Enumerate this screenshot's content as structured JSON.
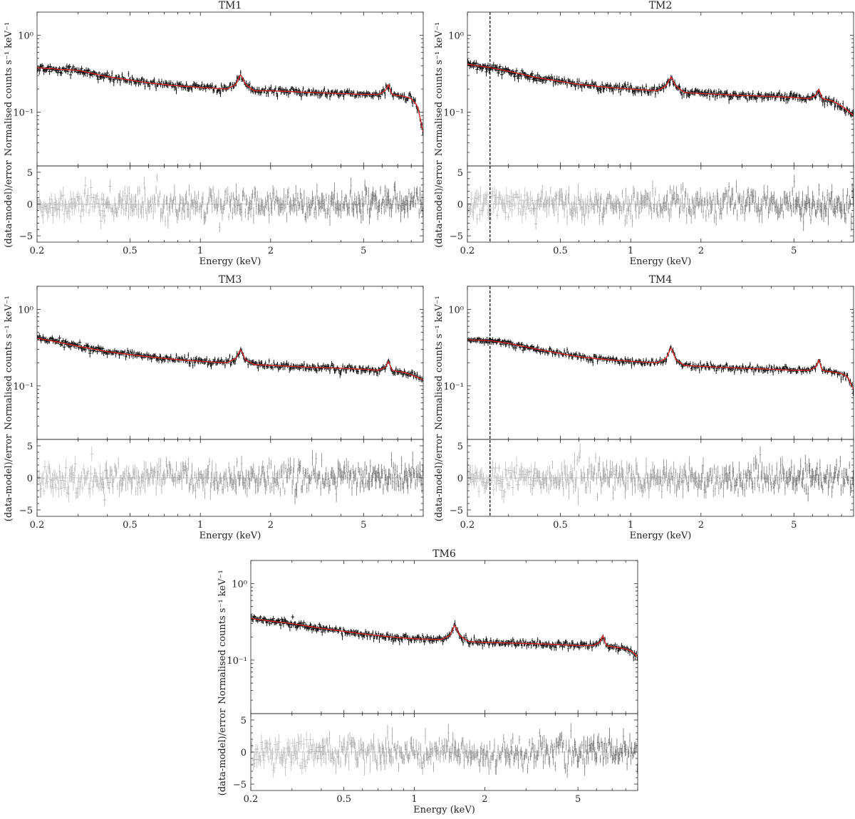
{
  "figure": {
    "colors": {
      "data": "#000000",
      "model": "#d62728",
      "residual_low": "#bdbdbd",
      "residual_high": "#6e6e6e",
      "marker_line": "#000000"
    }
  },
  "chart_data": [
    {
      "type": "scatter",
      "title": "TM1",
      "xlabel": "Energy (keV)",
      "ylabel_top": "Normalised counts s⁻¹ keV⁻¹",
      "ylabel_bottom": "(data-model)/error",
      "xscale": "log",
      "yscale_top": "log",
      "xlim": [
        0.2,
        9.0
      ],
      "ylim_top": [
        0.02,
        2.0
      ],
      "ylim_bottom": [
        -6,
        6
      ],
      "xticks": [
        0.2,
        0.5,
        1,
        2,
        5
      ],
      "xtick_labels": [
        "0.2",
        "0.5",
        "1",
        "2",
        "5"
      ],
      "yticks_top": [
        1.0,
        0.1
      ],
      "ytick_labels_top": [
        "10⁰",
        "10⁻¹"
      ],
      "yticks_bottom": [
        5,
        0,
        -5
      ],
      "ytick_labels_bottom": [
        "5",
        "0",
        "−5"
      ],
      "vline": null,
      "model": {
        "x": [
          0.2,
          0.25,
          0.3,
          0.4,
          0.6,
          0.8,
          1.0,
          1.3,
          1.42,
          1.49,
          1.56,
          1.7,
          2.0,
          3.0,
          4.0,
          5.0,
          5.8,
          6.2,
          6.4,
          6.6,
          7.0,
          7.5,
          8.0,
          8.5,
          9.0
        ],
        "y": [
          0.38,
          0.36,
          0.35,
          0.29,
          0.24,
          0.22,
          0.21,
          0.2,
          0.23,
          0.31,
          0.23,
          0.19,
          0.19,
          0.18,
          0.175,
          0.17,
          0.17,
          0.19,
          0.23,
          0.17,
          0.165,
          0.16,
          0.15,
          0.12,
          0.055
        ]
      },
      "noise": 0.1
    },
    {
      "type": "scatter",
      "title": "TM2",
      "xlabel": "Energy (keV)",
      "ylabel_top": "Normalised counts s⁻¹ keV⁻¹",
      "ylabel_bottom": "(data-model)/error",
      "xscale": "log",
      "yscale_top": "log",
      "xlim": [
        0.2,
        9.0
      ],
      "ylim_top": [
        0.02,
        2.0
      ],
      "ylim_bottom": [
        -6,
        6
      ],
      "xticks": [
        0.2,
        0.5,
        1,
        2,
        5
      ],
      "xtick_labels": [
        "0.2",
        "0.5",
        "1",
        "2",
        "5"
      ],
      "yticks_top": [
        1.0,
        0.1
      ],
      "ytick_labels_top": [
        "10⁰",
        "10⁻¹"
      ],
      "yticks_bottom": [
        5,
        0,
        -5
      ],
      "ytick_labels_bottom": [
        "5",
        "0",
        "−5"
      ],
      "vline": 0.25,
      "model": {
        "x": [
          0.2,
          0.25,
          0.3,
          0.4,
          0.6,
          0.8,
          1.0,
          1.3,
          1.42,
          1.49,
          1.56,
          1.7,
          2.0,
          3.0,
          4.0,
          5.0,
          5.8,
          6.2,
          6.4,
          6.6,
          7.0,
          7.5,
          8.0,
          8.5,
          9.0
        ],
        "y": [
          0.42,
          0.38,
          0.34,
          0.28,
          0.23,
          0.21,
          0.2,
          0.19,
          0.22,
          0.29,
          0.22,
          0.18,
          0.175,
          0.165,
          0.16,
          0.155,
          0.15,
          0.165,
          0.2,
          0.15,
          0.145,
          0.135,
          0.12,
          0.105,
          0.09
        ]
      },
      "noise": 0.11
    },
    {
      "type": "scatter",
      "title": "TM3",
      "xlabel": "Energy (keV)",
      "ylabel_top": "Normalised counts s⁻¹ keV⁻¹",
      "ylabel_bottom": "(data-model)/error",
      "xscale": "log",
      "yscale_top": "log",
      "xlim": [
        0.2,
        9.0
      ],
      "ylim_top": [
        0.02,
        2.0
      ],
      "ylim_bottom": [
        -6,
        6
      ],
      "xticks": [
        0.2,
        0.5,
        1,
        2,
        5
      ],
      "xtick_labels": [
        "0.2",
        "0.5",
        "1",
        "2",
        "5"
      ],
      "yticks_top": [
        1.0,
        0.1
      ],
      "ytick_labels_top": [
        "10⁰",
        "10⁻¹"
      ],
      "yticks_bottom": [
        5,
        0,
        -5
      ],
      "ytick_labels_bottom": [
        "5",
        "0",
        "−5"
      ],
      "vline": null,
      "model": {
        "x": [
          0.2,
          0.25,
          0.3,
          0.4,
          0.6,
          0.8,
          1.0,
          1.3,
          1.42,
          1.49,
          1.56,
          1.7,
          2.0,
          3.0,
          4.0,
          5.0,
          5.8,
          6.2,
          6.4,
          6.6,
          7.0,
          7.5,
          8.0,
          8.5,
          9.0
        ],
        "y": [
          0.42,
          0.37,
          0.33,
          0.28,
          0.24,
          0.22,
          0.21,
          0.2,
          0.23,
          0.3,
          0.22,
          0.19,
          0.185,
          0.175,
          0.17,
          0.165,
          0.16,
          0.175,
          0.21,
          0.16,
          0.155,
          0.15,
          0.14,
          0.13,
          0.12
        ]
      },
      "noise": 0.1
    },
    {
      "type": "scatter",
      "title": "TM4",
      "xlabel": "Energy (keV)",
      "ylabel_top": "Normalised counts s⁻¹ keV⁻¹",
      "ylabel_bottom": "(data-model)/error",
      "xscale": "log",
      "yscale_top": "log",
      "xlim": [
        0.2,
        9.0
      ],
      "ylim_top": [
        0.02,
        2.0
      ],
      "ylim_bottom": [
        -6,
        6
      ],
      "xticks": [
        0.2,
        0.5,
        1,
        2,
        5
      ],
      "xtick_labels": [
        "0.2",
        "0.5",
        "1",
        "2",
        "5"
      ],
      "yticks_top": [
        1.0,
        0.1
      ],
      "ytick_labels_top": [
        "10⁰",
        "10⁻¹"
      ],
      "yticks_bottom": [
        5,
        0,
        -5
      ],
      "ytick_labels_bottom": [
        "5",
        "0",
        "−5"
      ],
      "vline": 0.25,
      "model": {
        "x": [
          0.2,
          0.25,
          0.3,
          0.4,
          0.6,
          0.8,
          1.0,
          1.3,
          1.42,
          1.49,
          1.56,
          1.7,
          2.0,
          3.0,
          4.0,
          5.0,
          5.8,
          6.2,
          6.4,
          6.6,
          7.0,
          7.5,
          8.0,
          8.5,
          9.0
        ],
        "y": [
          0.4,
          0.39,
          0.36,
          0.3,
          0.24,
          0.22,
          0.21,
          0.2,
          0.23,
          0.32,
          0.22,
          0.185,
          0.18,
          0.17,
          0.165,
          0.16,
          0.16,
          0.175,
          0.22,
          0.16,
          0.155,
          0.15,
          0.145,
          0.13,
          0.09
        ]
      },
      "noise": 0.09
    },
    {
      "type": "scatter",
      "title": "TM6",
      "xlabel": "Energy (keV)",
      "ylabel_top": "Normalised counts s⁻¹ keV⁻¹",
      "ylabel_bottom": "(data-model)/error",
      "xscale": "log",
      "yscale_top": "log",
      "xlim": [
        0.2,
        9.0
      ],
      "ylim_top": [
        0.02,
        2.0
      ],
      "ylim_bottom": [
        -6,
        6
      ],
      "xticks": [
        0.2,
        0.5,
        1,
        2,
        5
      ],
      "xtick_labels": [
        "0.2",
        "0.5",
        "1",
        "2",
        "5"
      ],
      "yticks_top": [
        1.0,
        0.1
      ],
      "ytick_labels_top": [
        "10⁰",
        "10⁻¹"
      ],
      "yticks_bottom": [
        5,
        0,
        -5
      ],
      "ytick_labels_bottom": [
        "5",
        "0",
        "−5"
      ],
      "vline": null,
      "model": {
        "x": [
          0.2,
          0.25,
          0.3,
          0.4,
          0.6,
          0.8,
          1.0,
          1.3,
          1.42,
          1.49,
          1.56,
          1.7,
          2.0,
          3.0,
          4.0,
          5.0,
          5.8,
          6.2,
          6.4,
          6.6,
          7.0,
          7.5,
          8.0,
          8.5,
          9.0
        ],
        "y": [
          0.35,
          0.32,
          0.3,
          0.26,
          0.22,
          0.2,
          0.19,
          0.185,
          0.21,
          0.29,
          0.21,
          0.175,
          0.17,
          0.165,
          0.16,
          0.155,
          0.155,
          0.17,
          0.21,
          0.155,
          0.15,
          0.145,
          0.14,
          0.13,
          0.11
        ]
      },
      "noise": 0.1
    }
  ]
}
